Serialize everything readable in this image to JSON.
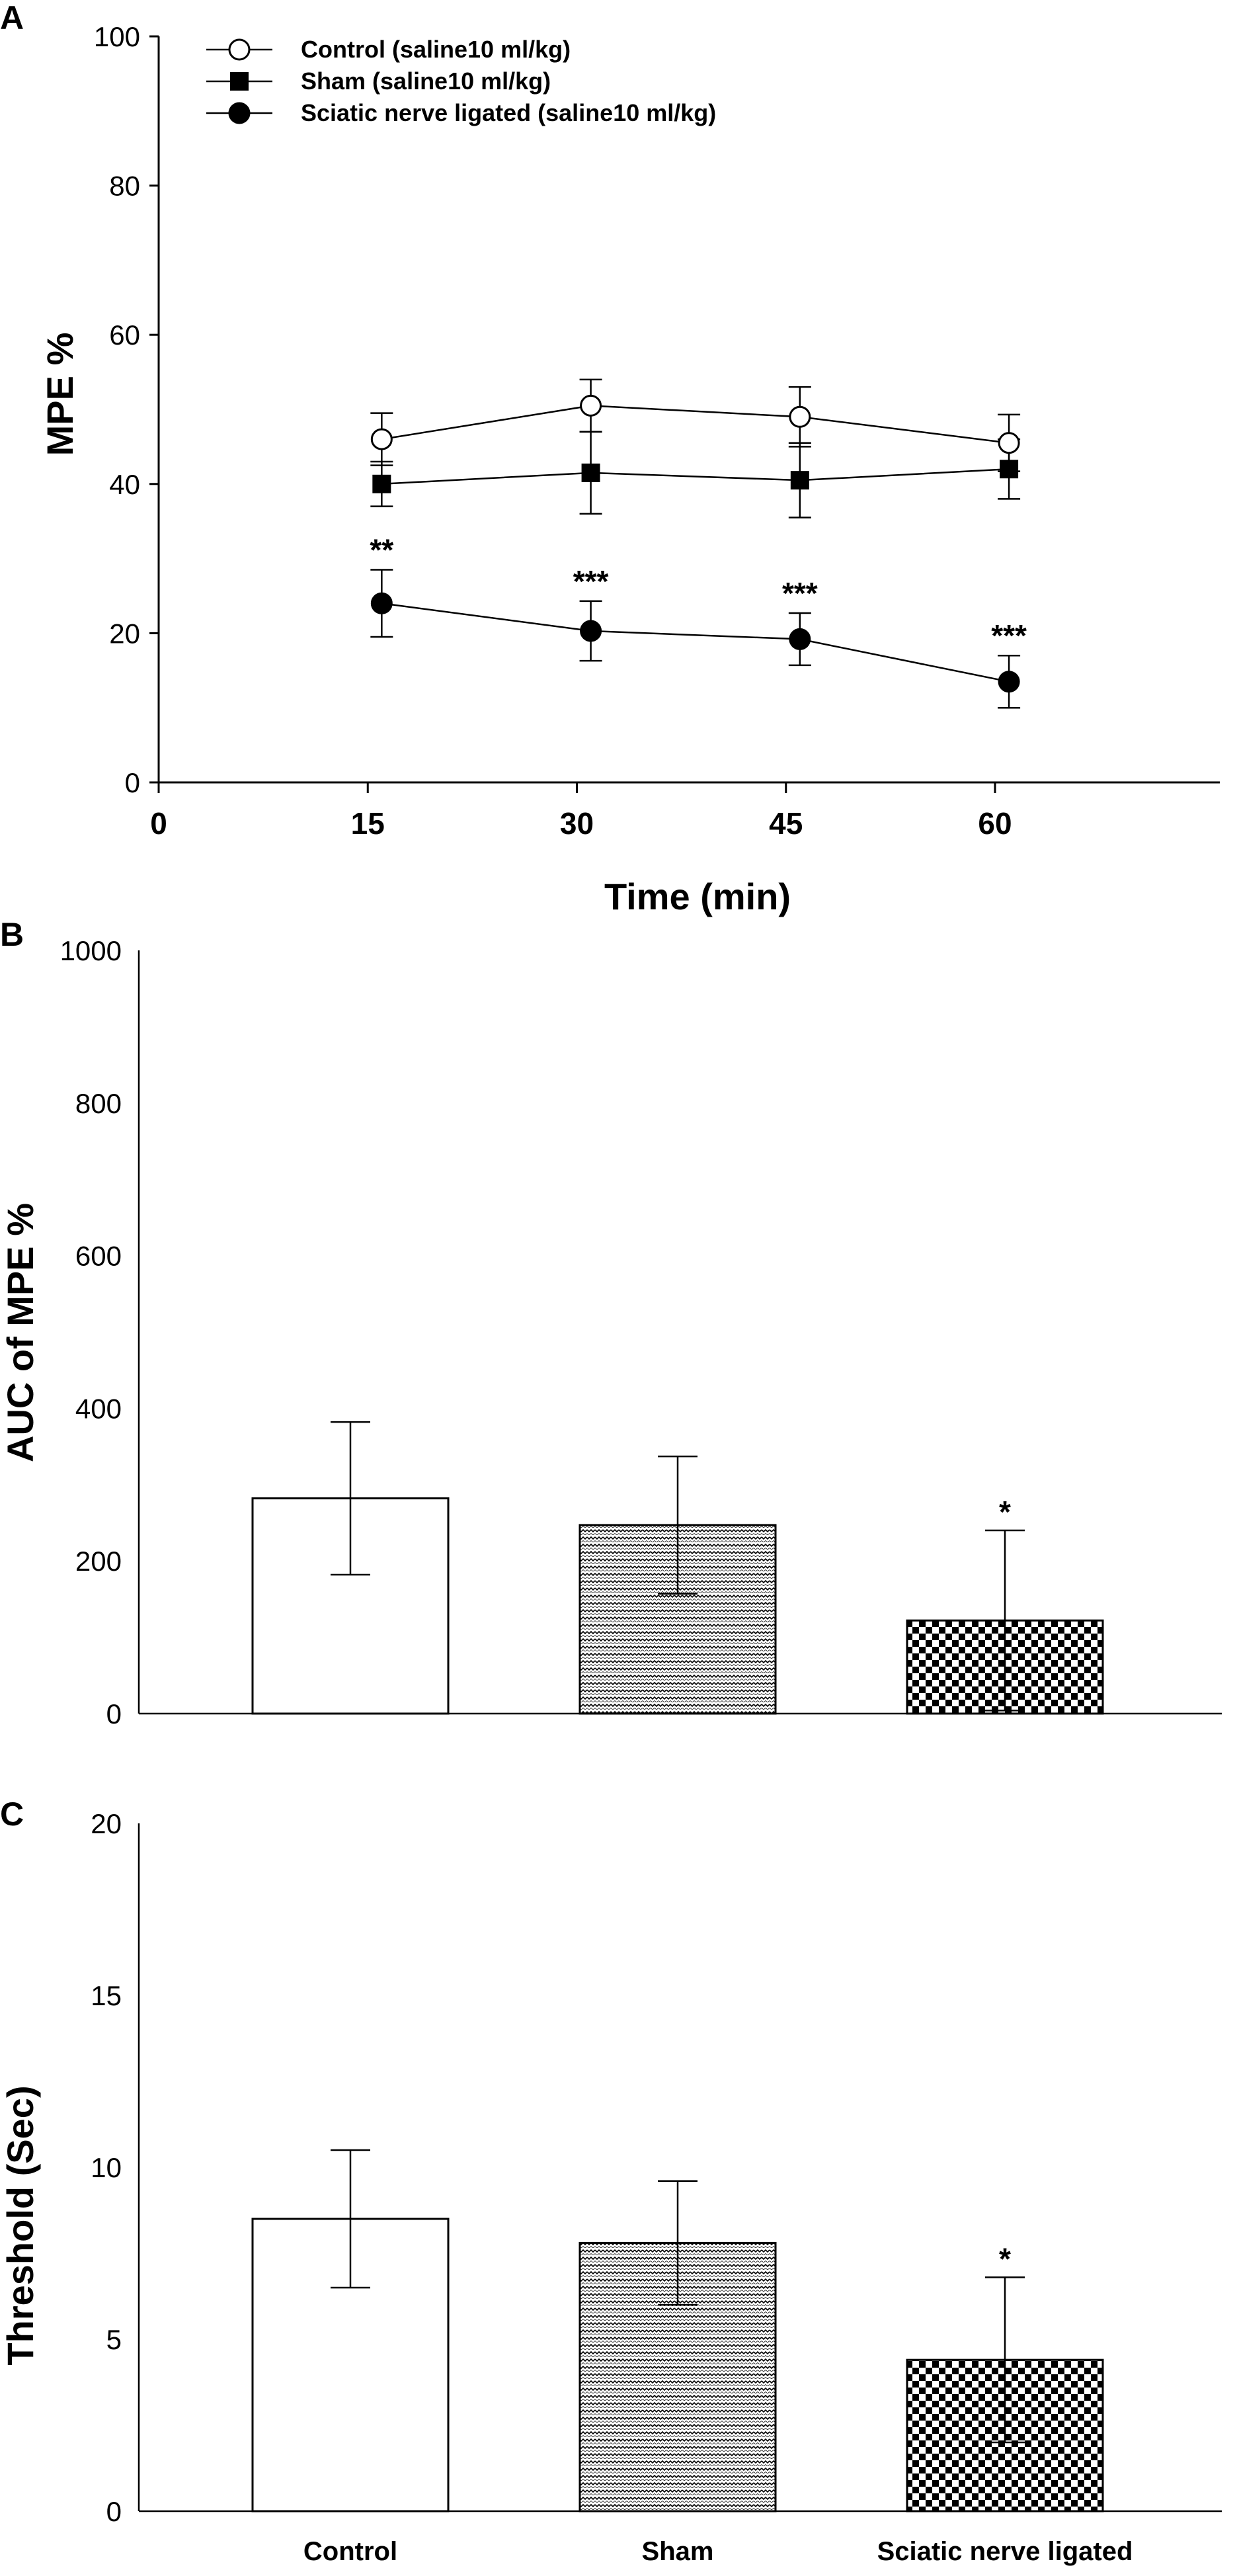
{
  "chart_data": [
    {
      "panel": "A",
      "type": "line",
      "xlabel": "Time (min)",
      "ylabel": "MPE %",
      "xlim": [
        0,
        70
      ],
      "ylim": [
        0,
        100
      ],
      "xticks": [
        "0",
        "15",
        "30",
        "45",
        "60"
      ],
      "yticks": [
        "0",
        "20",
        "40",
        "60",
        "80",
        "100"
      ],
      "legend_position": "top-left",
      "x": [
        16,
        31,
        46,
        61
      ],
      "series": [
        {
          "name": "Control (saline10 ml/kg)",
          "marker": "open-circle",
          "values": [
            46,
            50.5,
            49,
            45.5
          ],
          "errors": [
            3.5,
            3.5,
            4,
            3.8
          ]
        },
        {
          "name": "Sham (saline10 ml/kg)",
          "marker": "filled-square",
          "values": [
            40,
            41.5,
            40.5,
            42
          ],
          "errors": [
            3,
            5.5,
            5,
            4
          ]
        },
        {
          "name": "Sciatic nerve ligated (saline10 ml/kg)",
          "marker": "filled-circle",
          "values": [
            24,
            20.3,
            19.2,
            13.5
          ],
          "errors": [
            4.5,
            4,
            3.5,
            3.5
          ],
          "annotations": [
            "**",
            "***",
            "***",
            "***"
          ]
        }
      ]
    },
    {
      "panel": "B",
      "type": "bar",
      "ylabel": "AUC of MPE %",
      "ylim": [
        0,
        1000
      ],
      "yticks": [
        "0",
        "200",
        "400",
        "600",
        "800",
        "1000"
      ],
      "categories": [
        "Control",
        "Sham",
        "Sciatic nerve ligated"
      ],
      "values": [
        282,
        247,
        122
      ],
      "errors": [
        100,
        90,
        118
      ],
      "patterns": [
        "none",
        "zigzag",
        "checker"
      ],
      "annotations": [
        "",
        "",
        "*"
      ]
    },
    {
      "panel": "C",
      "type": "bar",
      "ylabel": "Threshold (Sec)",
      "ylim": [
        0,
        20
      ],
      "yticks": [
        "0",
        "5",
        "10",
        "15",
        "20"
      ],
      "categories": [
        "Control",
        "Sham",
        "Sciatic nerve ligated"
      ],
      "values": [
        8.5,
        7.8,
        4.4
      ],
      "errors": [
        2,
        1.8,
        2.4
      ],
      "patterns": [
        "none",
        "zigzag",
        "checker"
      ],
      "annotations": [
        "",
        "",
        "*"
      ]
    }
  ],
  "colors": {
    "ink": "#000000",
    "paper": "#ffffff"
  }
}
